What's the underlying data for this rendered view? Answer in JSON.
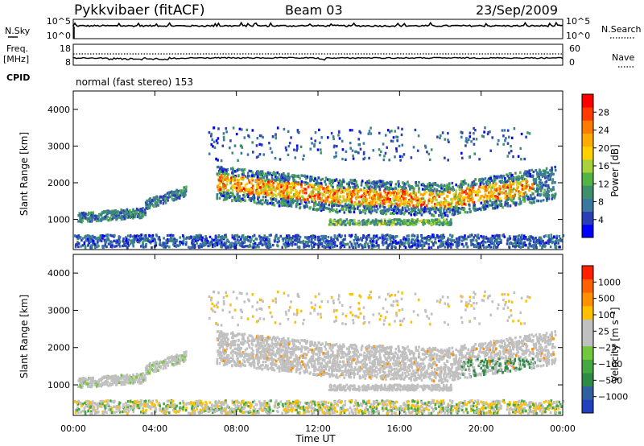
{
  "header": {
    "station": "Pykkvibaer (fitACF)",
    "beam": "Beam 03",
    "date": "23/Sep/2009"
  },
  "top_panels": {
    "nsky_label": "N.Sky",
    "nsky_ticks": [
      "10^5",
      "10^0"
    ],
    "nsearch_label": "N.Search",
    "nsearch_ticks": [
      "10^5",
      "10^0"
    ],
    "freq_label": "Freq.",
    "freq_unit": "[MHz]",
    "freq_ticks": [
      "18",
      "8"
    ],
    "nave_label": "Nave",
    "nave_ticks": [
      "60",
      "0"
    ],
    "cpid_label": "CPID",
    "cpid_text": "normal (fast stereo) 153"
  },
  "chart_data": [
    {
      "type": "heatmap",
      "name": "power",
      "ylabel": "Slant Range [km]",
      "ylim": [
        180,
        4500
      ],
      "yticks": [
        "1000",
        "2000",
        "3000",
        "4000"
      ],
      "xlim_hours": [
        0,
        24
      ],
      "colorbar_label": "Power [dB]",
      "colorbar_ticks": [
        "4",
        "8",
        "12",
        "16",
        "20",
        "24",
        "28"
      ],
      "colorbar_colors": [
        "#0000ff",
        "#2a3eb5",
        "#3a78a0",
        "#3f8f6c",
        "#52b442",
        "#a8d23a",
        "#ffd000",
        "#ffaa00",
        "#ff7a00",
        "#ff3c00",
        "#ff0000"
      ]
    },
    {
      "type": "heatmap",
      "name": "velocity",
      "ylabel": "Slant Range [km]",
      "ylim": [
        180,
        4500
      ],
      "yticks": [
        "1000",
        "2000",
        "3000",
        "4000"
      ],
      "xlim_hours": [
        0,
        24
      ],
      "colorbar_label": "Velocity [m s⁻¹]",
      "colorbar_ticks": [
        "1000",
        "500",
        "100",
        "25",
        "−25",
        "−100",
        "−500",
        "−1000"
      ],
      "colorbar_colors": [
        "#2040c0",
        "#3060a0",
        "#2f8a48",
        "#45a840",
        "#72c83a",
        "#c0c0c0",
        "#c0c0c0",
        "#ffc000",
        "#ff9000",
        "#ff6000",
        "#ff2000"
      ]
    }
  ],
  "xaxis": {
    "label": "Time UT",
    "ticks": [
      "00:00",
      "04:00",
      "08:00",
      "12:00",
      "16:00",
      "20:00",
      "00:00"
    ]
  }
}
